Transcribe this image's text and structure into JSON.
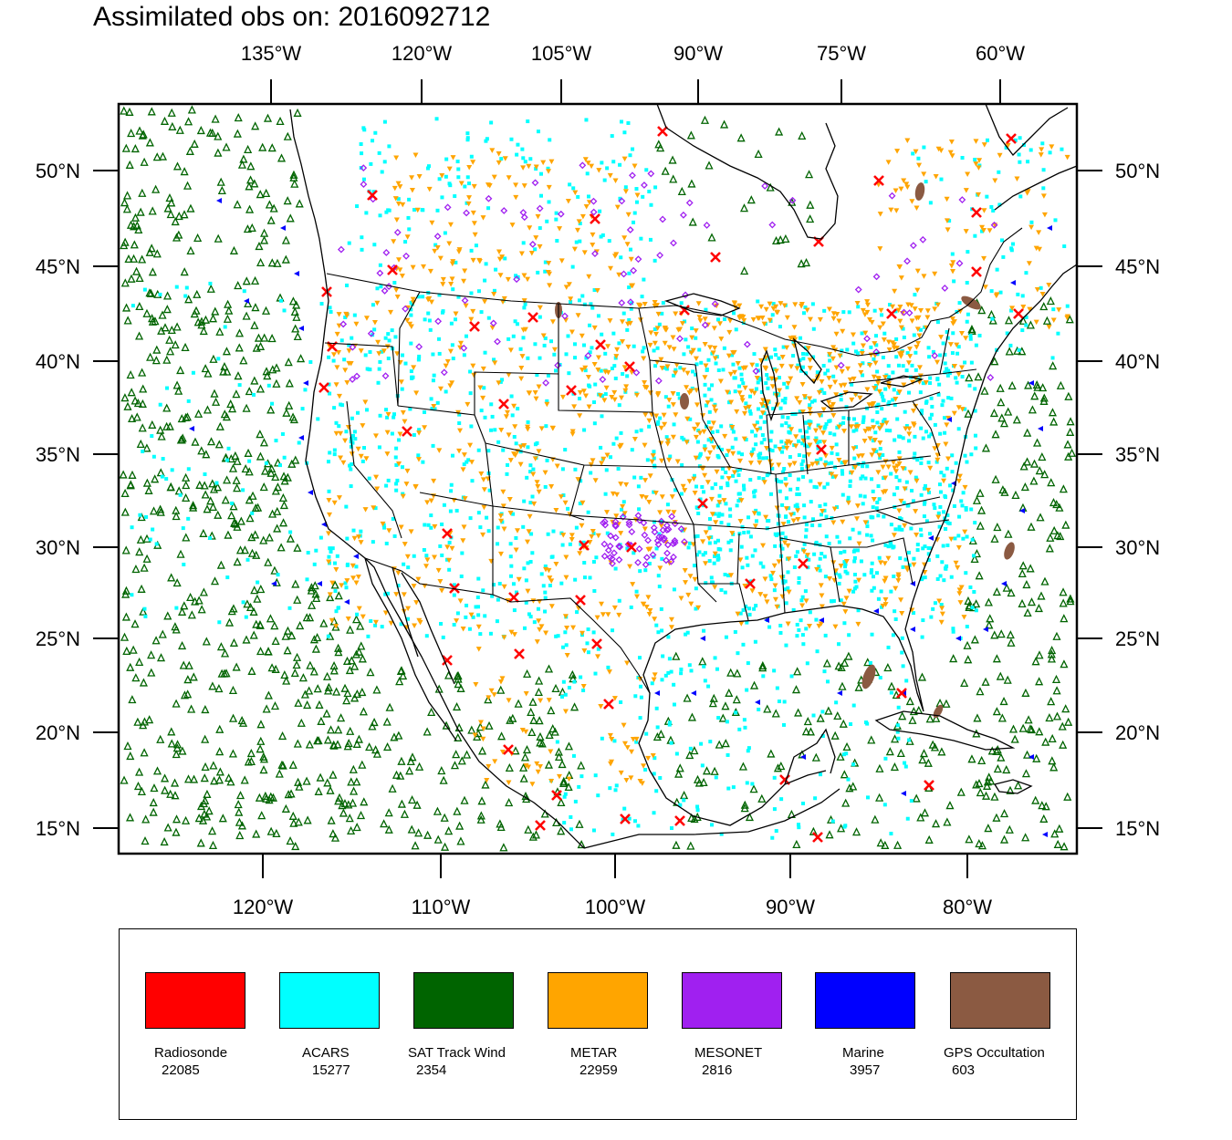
{
  "title": "Assimilated obs on: 2016092712",
  "map": {
    "top_lon_labels": [
      "135°W",
      "120°W",
      "105°W",
      "90°W",
      "75°W",
      "60°W"
    ],
    "bottom_lon_labels": [
      "120°W",
      "110°W",
      "100°W",
      "90°W",
      "80°W"
    ],
    "lat_labels": [
      "50°N",
      "45°N",
      "40°N",
      "35°N",
      "30°N",
      "25°N",
      "20°N",
      "15°N"
    ]
  },
  "legend": [
    {
      "name": "Radiosonde",
      "count": "22085",
      "color": "#ff0000"
    },
    {
      "name": "ACARS",
      "count": "15277",
      "color": "#00ffff"
    },
    {
      "name": "SAT Track Wind",
      "count": "2354",
      "color": "#006400"
    },
    {
      "name": "METAR",
      "count": "22959",
      "color": "#ffa500"
    },
    {
      "name": "MESONET",
      "count": "2816",
      "color": "#a020f0"
    },
    {
      "name": "Marine",
      "count": "3957",
      "color": "#0000ff"
    },
    {
      "name": "GPS Occultation",
      "count": "603",
      "color": "#8b5a42"
    }
  ]
}
